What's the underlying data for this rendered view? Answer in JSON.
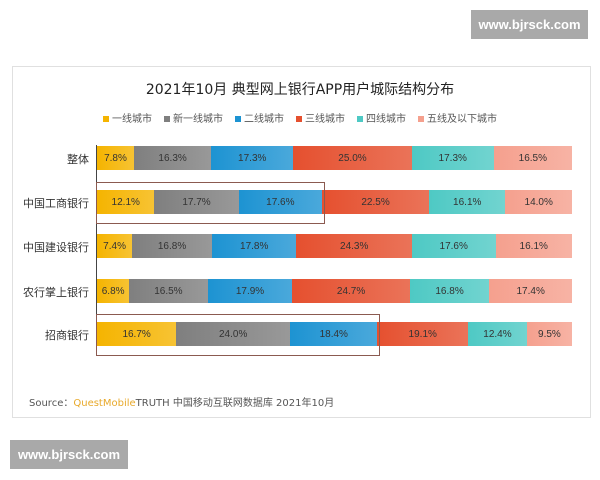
{
  "watermark": "www.bjrsck.com",
  "chart_data": {
    "type": "bar",
    "stacked": true,
    "orientation": "horizontal",
    "title": "2021年10月 典型网上银行APP用户城际结构分布",
    "legend_position": "top",
    "categories": [
      "整体",
      "中国工商银行",
      "中国建设银行",
      "农行掌上银行",
      "招商银行"
    ],
    "series": [
      {
        "name": "一线城市",
        "color": "#f5b400",
        "values": [
          7.8,
          12.1,
          7.4,
          6.8,
          16.7
        ]
      },
      {
        "name": "新一线城市",
        "color": "#7f7f7f",
        "values": [
          16.3,
          17.7,
          16.8,
          16.5,
          24.0
        ]
      },
      {
        "name": "二线城市",
        "color": "#1d93d2",
        "values": [
          17.3,
          17.6,
          17.8,
          17.9,
          18.4
        ]
      },
      {
        "name": "三线城市",
        "color": "#e5502f",
        "values": [
          25.0,
          22.5,
          24.3,
          24.7,
          19.1
        ]
      },
      {
        "name": "四线城市",
        "color": "#4ec9c4",
        "values": [
          17.3,
          16.1,
          17.6,
          16.8,
          12.4
        ]
      },
      {
        "name": "五线及以下城市",
        "color": "#f5a08e",
        "values": [
          16.5,
          14.0,
          16.1,
          17.4,
          9.5
        ]
      }
    ],
    "value_suffix": "%",
    "highlighted_categories": [
      "中国工商银行",
      "招商银行"
    ]
  },
  "source": {
    "prefix": "Source：",
    "brand": "QuestMobile",
    "rest": "TRUTH 中国移动互联网数据库 2021年10月"
  }
}
